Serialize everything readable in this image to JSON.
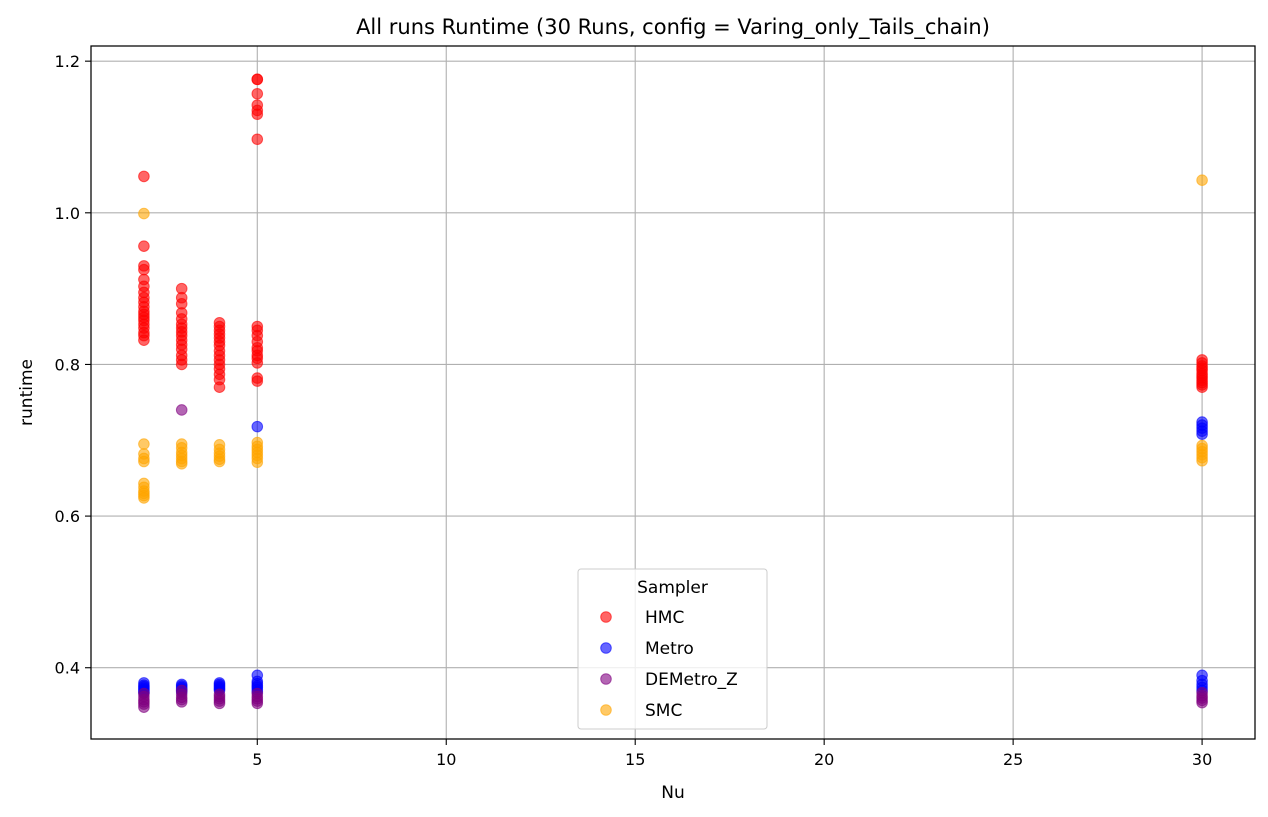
{
  "chart_data": {
    "type": "scatter",
    "title": "All runs Runtime (30 Runs, config = Varing_only_Tails_chain)",
    "xlabel": "Nu",
    "ylabel": "runtime",
    "xlim": [
      0.6,
      31.4
    ],
    "ylim": [
      0.306,
      1.22
    ],
    "xticks": [
      5,
      10,
      15,
      20,
      25,
      30
    ],
    "yticks": [
      0.4,
      0.6,
      0.8,
      1.0,
      1.2
    ],
    "ytick_labels": [
      "0.4",
      "0.6",
      "0.8",
      "1.0",
      "1.2"
    ],
    "grid": true,
    "legend": {
      "title": "Sampler",
      "placement": "lower-center"
    },
    "series": [
      {
        "name": "HMC",
        "color": "#ff0000",
        "points": [
          [
            2,
            1.048
          ],
          [
            2,
            0.956
          ],
          [
            2,
            0.93
          ],
          [
            2,
            0.925
          ],
          [
            2,
            0.912
          ],
          [
            2,
            0.903
          ],
          [
            2,
            0.895
          ],
          [
            2,
            0.888
          ],
          [
            2,
            0.882
          ],
          [
            2,
            0.876
          ],
          [
            2,
            0.87
          ],
          [
            2,
            0.866
          ],
          [
            2,
            0.862
          ],
          [
            2,
            0.858
          ],
          [
            2,
            0.853
          ],
          [
            2,
            0.848
          ],
          [
            2,
            0.842
          ],
          [
            2,
            0.838
          ],
          [
            2,
            0.832
          ],
          [
            3,
            0.9
          ],
          [
            3,
            0.888
          ],
          [
            3,
            0.88
          ],
          [
            3,
            0.868
          ],
          [
            3,
            0.86
          ],
          [
            3,
            0.853
          ],
          [
            3,
            0.848
          ],
          [
            3,
            0.843
          ],
          [
            3,
            0.838
          ],
          [
            3,
            0.832
          ],
          [
            3,
            0.826
          ],
          [
            3,
            0.82
          ],
          [
            3,
            0.812
          ],
          [
            3,
            0.806
          ],
          [
            3,
            0.8
          ],
          [
            4,
            0.855
          ],
          [
            4,
            0.85
          ],
          [
            4,
            0.845
          ],
          [
            4,
            0.84
          ],
          [
            4,
            0.835
          ],
          [
            4,
            0.83
          ],
          [
            4,
            0.825
          ],
          [
            4,
            0.818
          ],
          [
            4,
            0.812
          ],
          [
            4,
            0.806
          ],
          [
            4,
            0.8
          ],
          [
            4,
            0.794
          ],
          [
            4,
            0.787
          ],
          [
            4,
            0.78
          ],
          [
            4,
            0.77
          ],
          [
            5,
            1.176
          ],
          [
            5,
            1.176
          ],
          [
            5,
            1.157
          ],
          [
            5,
            1.142
          ],
          [
            5,
            1.135
          ],
          [
            5,
            1.13
          ],
          [
            5,
            1.097
          ],
          [
            5,
            0.85
          ],
          [
            5,
            0.845
          ],
          [
            5,
            0.838
          ],
          [
            5,
            0.83
          ],
          [
            5,
            0.822
          ],
          [
            5,
            0.818
          ],
          [
            5,
            0.812
          ],
          [
            5,
            0.808
          ],
          [
            5,
            0.802
          ],
          [
            5,
            0.782
          ],
          [
            5,
            0.778
          ],
          [
            30,
            0.806
          ],
          [
            30,
            0.802
          ],
          [
            30,
            0.798
          ],
          [
            30,
            0.795
          ],
          [
            30,
            0.792
          ],
          [
            30,
            0.788
          ],
          [
            30,
            0.785
          ],
          [
            30,
            0.782
          ],
          [
            30,
            0.779
          ],
          [
            30,
            0.776
          ],
          [
            30,
            0.773
          ],
          [
            30,
            0.77
          ]
        ]
      },
      {
        "name": "Metro",
        "color": "#0000ff",
        "points": [
          [
            2,
            0.38
          ],
          [
            2,
            0.377
          ],
          [
            2,
            0.375
          ],
          [
            2,
            0.373
          ],
          [
            2,
            0.371
          ],
          [
            2,
            0.369
          ],
          [
            2,
            0.367
          ],
          [
            3,
            0.378
          ],
          [
            3,
            0.376
          ],
          [
            3,
            0.374
          ],
          [
            3,
            0.372
          ],
          [
            3,
            0.37
          ],
          [
            3,
            0.368
          ],
          [
            4,
            0.38
          ],
          [
            4,
            0.378
          ],
          [
            4,
            0.376
          ],
          [
            4,
            0.374
          ],
          [
            4,
            0.372
          ],
          [
            4,
            0.37
          ],
          [
            5,
            0.718
          ],
          [
            5,
            0.39
          ],
          [
            5,
            0.382
          ],
          [
            5,
            0.379
          ],
          [
            5,
            0.376
          ],
          [
            5,
            0.374
          ],
          [
            5,
            0.371
          ],
          [
            5,
            0.368
          ],
          [
            30,
            0.724
          ],
          [
            30,
            0.72
          ],
          [
            30,
            0.716
          ],
          [
            30,
            0.712
          ],
          [
            30,
            0.708
          ],
          [
            30,
            0.39
          ],
          [
            30,
            0.383
          ],
          [
            30,
            0.378
          ],
          [
            30,
            0.374
          ],
          [
            30,
            0.37
          ]
        ]
      },
      {
        "name": "DEMetro_Z",
        "color": "#800080",
        "points": [
          [
            2,
            0.366
          ],
          [
            2,
            0.362
          ],
          [
            2,
            0.358
          ],
          [
            2,
            0.355
          ],
          [
            2,
            0.352
          ],
          [
            2,
            0.348
          ],
          [
            3,
            0.74
          ],
          [
            3,
            0.37
          ],
          [
            3,
            0.365
          ],
          [
            3,
            0.361
          ],
          [
            3,
            0.358
          ],
          [
            3,
            0.355
          ],
          [
            4,
            0.365
          ],
          [
            4,
            0.362
          ],
          [
            4,
            0.359
          ],
          [
            4,
            0.356
          ],
          [
            4,
            0.353
          ],
          [
            5,
            0.366
          ],
          [
            5,
            0.362
          ],
          [
            5,
            0.359
          ],
          [
            5,
            0.356
          ],
          [
            5,
            0.353
          ],
          [
            30,
            0.367
          ],
          [
            30,
            0.363
          ],
          [
            30,
            0.36
          ],
          [
            30,
            0.357
          ],
          [
            30,
            0.354
          ]
        ]
      },
      {
        "name": "SMC",
        "color": "#ffa500",
        "points": [
          [
            2,
            0.999
          ],
          [
            2,
            0.695
          ],
          [
            2,
            0.682
          ],
          [
            2,
            0.676
          ],
          [
            2,
            0.672
          ],
          [
            2,
            0.643
          ],
          [
            2,
            0.638
          ],
          [
            2,
            0.633
          ],
          [
            2,
            0.63
          ],
          [
            2,
            0.627
          ],
          [
            2,
            0.624
          ],
          [
            3,
            0.695
          ],
          [
            3,
            0.69
          ],
          [
            3,
            0.684
          ],
          [
            3,
            0.68
          ],
          [
            3,
            0.676
          ],
          [
            3,
            0.672
          ],
          [
            3,
            0.669
          ],
          [
            4,
            0.694
          ],
          [
            4,
            0.688
          ],
          [
            4,
            0.683
          ],
          [
            4,
            0.679
          ],
          [
            4,
            0.675
          ],
          [
            4,
            0.672
          ],
          [
            5,
            0.697
          ],
          [
            5,
            0.692
          ],
          [
            5,
            0.688
          ],
          [
            5,
            0.684
          ],
          [
            5,
            0.68
          ],
          [
            5,
            0.676
          ],
          [
            5,
            0.671
          ],
          [
            30,
            1.043
          ],
          [
            30,
            0.693
          ],
          [
            30,
            0.689
          ],
          [
            30,
            0.685
          ],
          [
            30,
            0.681
          ],
          [
            30,
            0.677
          ],
          [
            30,
            0.673
          ]
        ]
      }
    ]
  }
}
